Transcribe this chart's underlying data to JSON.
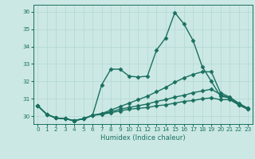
{
  "xlabel": "Humidex (Indice chaleur)",
  "bg_color": "#cce8e4",
  "grid_color": "#b0d8d4",
  "line_color": "#1a7060",
  "xlim": [
    -0.5,
    23.5
  ],
  "ylim": [
    29.55,
    36.4
  ],
  "yticks": [
    30,
    31,
    32,
    33,
    34,
    35,
    36
  ],
  "xticks": [
    0,
    1,
    2,
    3,
    4,
    5,
    6,
    7,
    8,
    9,
    10,
    11,
    12,
    13,
    14,
    15,
    16,
    17,
    18,
    19,
    20,
    21,
    22,
    23
  ],
  "series": [
    [
      30.6,
      30.1,
      29.9,
      29.85,
      29.75,
      29.85,
      30.05,
      31.8,
      32.7,
      32.7,
      32.3,
      32.25,
      32.3,
      33.8,
      34.5,
      35.95,
      35.3,
      34.35,
      32.85,
      32.0,
      31.15,
      31.05,
      30.65,
      30.4
    ],
    [
      30.6,
      30.1,
      29.9,
      29.85,
      29.75,
      29.85,
      30.05,
      30.15,
      30.35,
      30.55,
      30.75,
      30.95,
      31.15,
      31.4,
      31.65,
      31.95,
      32.2,
      32.4,
      32.55,
      32.55,
      31.35,
      31.1,
      30.75,
      30.45
    ],
    [
      30.6,
      30.1,
      29.9,
      29.85,
      29.75,
      29.85,
      30.05,
      30.15,
      30.25,
      30.4,
      30.5,
      30.6,
      30.7,
      30.85,
      30.95,
      31.1,
      31.2,
      31.35,
      31.45,
      31.55,
      31.25,
      31.05,
      30.7,
      30.45
    ],
    [
      30.6,
      30.1,
      29.9,
      29.85,
      29.75,
      29.85,
      30.05,
      30.1,
      30.2,
      30.3,
      30.4,
      30.45,
      30.5,
      30.6,
      30.65,
      30.75,
      30.85,
      30.9,
      31.0,
      31.05,
      30.95,
      30.95,
      30.65,
      30.4
    ]
  ],
  "marker": "D",
  "markersize": 2.5,
  "linewidth": 1.0,
  "xlabel_fontsize": 6.0,
  "tick_fontsize": 5.2
}
